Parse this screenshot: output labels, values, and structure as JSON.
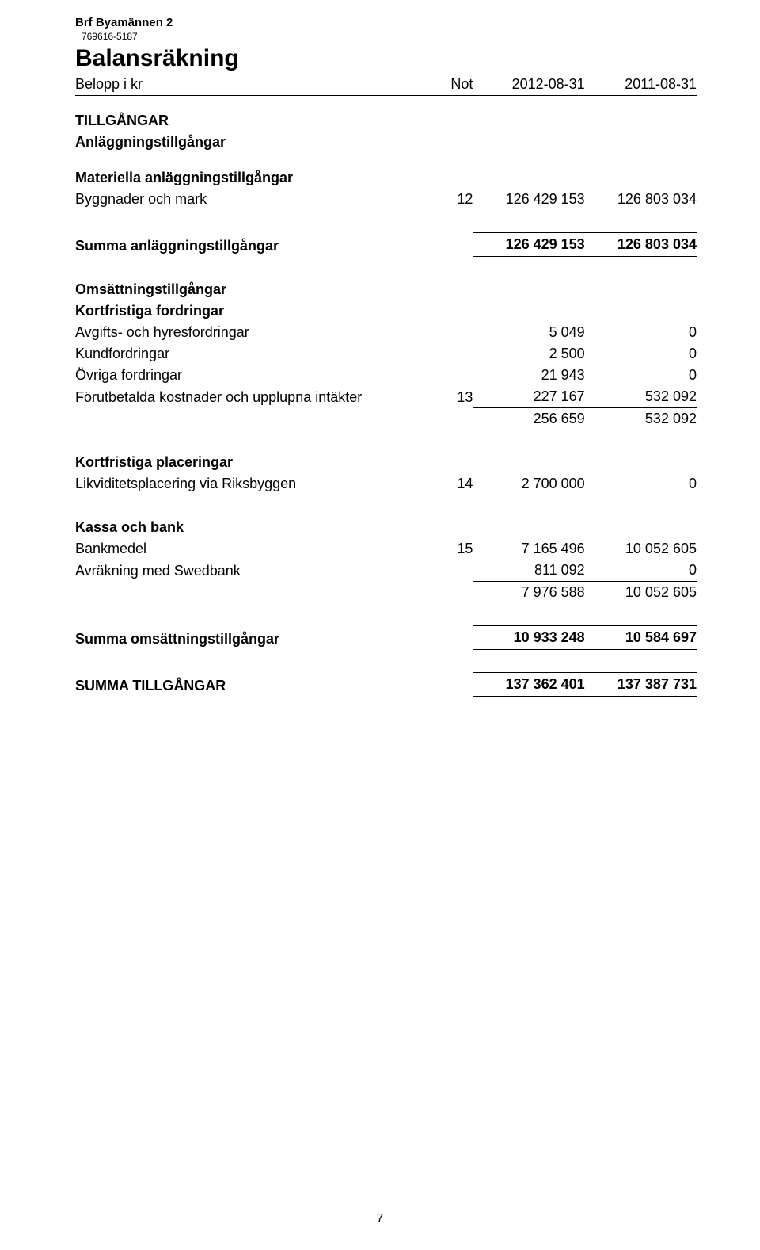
{
  "header": {
    "org_name": "Brf Byamännen 2",
    "org_id": "769616-5187",
    "title": "Balansräkning",
    "subtitle": "Belopp i kr",
    "col_not": "Not",
    "col_a": "2012-08-31",
    "col_b": "2011-08-31"
  },
  "sections": {
    "tillgangar": "TILLGÅNGAR",
    "anlaggningstillgangar": "Anläggningstillgångar",
    "materiella": "Materiella anläggningstillgångar",
    "omsattningstillgangar": "Omsättningstillgångar",
    "kortfristiga_fordringar": "Kortfristiga fordringar",
    "kortfristiga_placeringar": "Kortfristiga placeringar",
    "kassa_bank": "Kassa och bank"
  },
  "rows": {
    "byggnader": {
      "label": "Byggnader och mark",
      "not": "12",
      "a": "126 429 153",
      "b": "126 803 034"
    },
    "summa_anl": {
      "label": "Summa anläggningstillgångar",
      "a": "126 429 153",
      "b": "126 803 034"
    },
    "avgifts": {
      "label": "Avgifts- och hyresfordringar",
      "a": "5 049",
      "b": "0"
    },
    "kundford": {
      "label": "Kundfordringar",
      "a": "2 500",
      "b": "0"
    },
    "ovriga": {
      "label": "Övriga fordringar",
      "a": "21 943",
      "b": "0"
    },
    "forut": {
      "label": "Förutbetalda kostnader och upplupna intäkter",
      "not": "13",
      "a": "227 167",
      "b": "532 092"
    },
    "sum_ford": {
      "a": "256 659",
      "b": "532 092"
    },
    "likvid": {
      "label": "Likviditetsplacering via Riksbyggen",
      "not": "14",
      "a": "2 700 000",
      "b": "0"
    },
    "bankmedel": {
      "label": "Bankmedel",
      "not": "15",
      "a": "7 165 496",
      "b": "10 052 605"
    },
    "avrakning": {
      "label": "Avräkning med Swedbank",
      "a": "811 092",
      "b": "0"
    },
    "sum_bank": {
      "a": "7 976 588",
      "b": "10 052 605"
    },
    "summa_oms": {
      "label": "Summa omsättningstillgångar",
      "a": "10 933 248",
      "b": "10 584 697"
    },
    "summa_till": {
      "label": "SUMMA TILLGÅNGAR",
      "a": "137 362 401",
      "b": "137 387 731"
    }
  },
  "page_number": "7"
}
